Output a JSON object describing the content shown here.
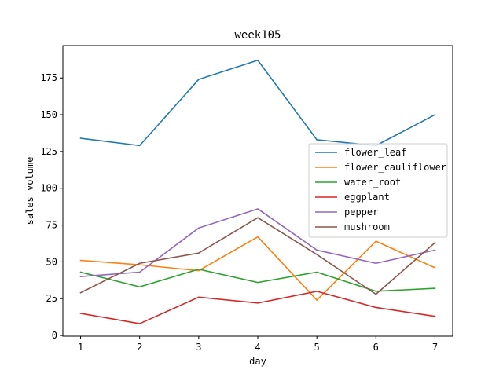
{
  "chart_data": {
    "type": "line",
    "title": "week105",
    "xlabel": "day",
    "ylabel": "sales volume",
    "x": [
      1,
      2,
      3,
      4,
      5,
      6,
      7
    ],
    "xlim": [
      0.7,
      7.3
    ],
    "ylim": [
      -0.5,
      197
    ],
    "xticks": [
      1,
      2,
      3,
      4,
      5,
      6,
      7
    ],
    "yticks": [
      0,
      25,
      50,
      75,
      100,
      125,
      150,
      175
    ],
    "grid": false,
    "legend_position": "center-right",
    "series": [
      {
        "name": "flower_leaf",
        "color": "#1f77b4",
        "values": [
          134,
          129,
          174,
          187,
          133,
          129,
          150
        ]
      },
      {
        "name": "flower_cauliflower",
        "color": "#ff7f0e",
        "values": [
          51,
          48,
          44,
          67,
          24,
          64,
          46
        ]
      },
      {
        "name": "water_root",
        "color": "#2ca02c",
        "values": [
          43,
          33,
          45,
          36,
          43,
          30,
          32
        ]
      },
      {
        "name": "eggplant",
        "color": "#d62728",
        "values": [
          15,
          8,
          26,
          22,
          30,
          19,
          13
        ]
      },
      {
        "name": "pepper",
        "color": "#9467bd",
        "values": [
          40,
          43,
          73,
          86,
          58,
          49,
          58
        ]
      },
      {
        "name": "mushroom",
        "color": "#8c564b",
        "values": [
          29,
          49,
          56,
          80,
          55,
          28,
          63
        ]
      }
    ]
  }
}
